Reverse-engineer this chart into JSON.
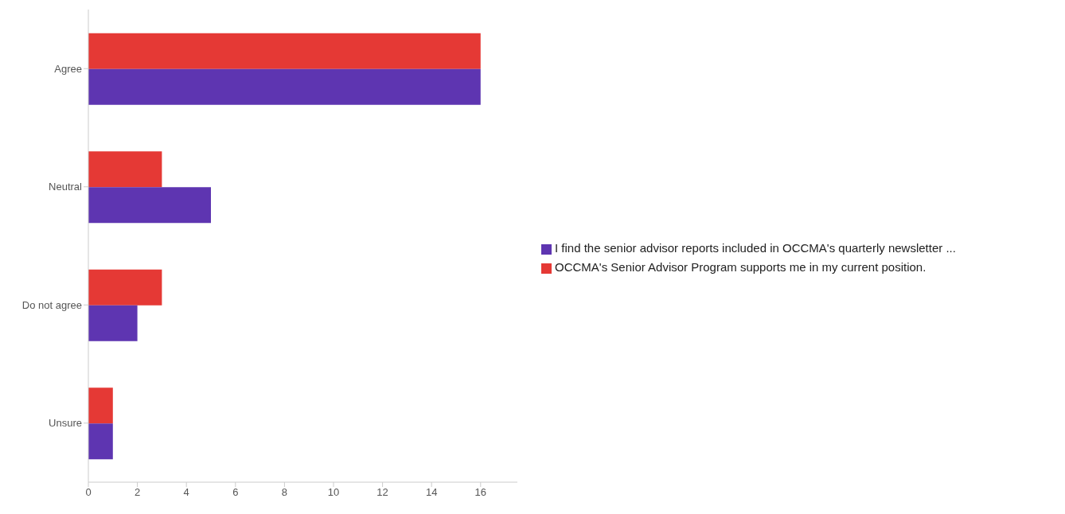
{
  "chart_data": {
    "type": "bar",
    "orientation": "horizontal",
    "categories": [
      "Agree",
      "Neutral",
      "Do not agree",
      "Unsure"
    ],
    "series": [
      {
        "name": "OCCMA's Senior Advisor Program supports me in my current position.",
        "color": "#e53935",
        "values": [
          16,
          3,
          3,
          1
        ]
      },
      {
        "name": "I find the senior advisor reports included in OCCMA's quarterly newsletter ...",
        "color": "#5e35b1",
        "values": [
          16,
          5,
          2,
          1
        ]
      }
    ],
    "xlim": [
      0,
      17.5
    ],
    "xticks": [
      0,
      2,
      4,
      6,
      8,
      10,
      12,
      14,
      16
    ],
    "legend": "right"
  }
}
